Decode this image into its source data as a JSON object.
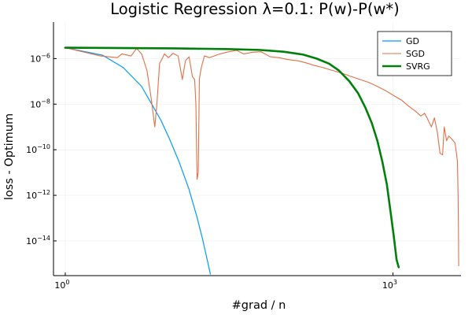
{
  "chart_data": {
    "type": "line",
    "title": "Logistic Regression λ=0.1: P(w)-P(w*)",
    "xlabel": "#grad / n",
    "ylabel": "loss - Optimum",
    "x_scale": "log10",
    "y_scale": "log10",
    "xlim": [
      0.78,
      4200
    ],
    "ylim": [
      3e-16,
      4e-05
    ],
    "grid": true,
    "legend_position": "top-right",
    "x_ticks": [
      {
        "value": 1,
        "base": "10",
        "exp": "0"
      },
      {
        "value": 1000,
        "base": "10",
        "exp": "3"
      }
    ],
    "y_ticks": [
      {
        "value": 1e-06,
        "base": "10",
        "exp": "−6"
      },
      {
        "value": 1e-08,
        "base": "10",
        "exp": "−8"
      },
      {
        "value": 1e-10,
        "base": "10",
        "exp": "−10"
      },
      {
        "value": 1e-12,
        "base": "10",
        "exp": "−12"
      },
      {
        "value": 1e-14,
        "base": "10",
        "exp": "−14"
      }
    ],
    "series": [
      {
        "name": "GD",
        "color": "#009af9",
        "width": 1.2,
        "points": [
          [
            1,
            3e-06
          ],
          [
            2.2,
            1.4e-06
          ],
          [
            3.4,
            4e-07
          ],
          [
            5,
            6e-08
          ],
          [
            6,
            1.3e-08
          ],
          [
            7.5,
            2e-09
          ],
          [
            9,
            3e-10
          ],
          [
            11,
            3e-11
          ],
          [
            13.5,
            2e-12
          ],
          [
            16,
            1.2e-13
          ],
          [
            18,
            1.3e-14
          ],
          [
            20,
            1.4e-15
          ],
          [
            21.3,
            3.5e-16
          ]
        ]
      },
      {
        "name": "SGD",
        "color": "#e26f46",
        "width": 1.1,
        "points": [
          [
            1,
            3e-06
          ],
          [
            2.1,
            1.3e-06
          ],
          [
            3,
            1.1e-06
          ],
          [
            3.3,
            1.6e-06
          ],
          [
            4,
            1.3e-06
          ],
          [
            4.5,
            2.8e-06
          ],
          [
            5,
            1.6e-06
          ],
          [
            5.6,
            3e-07
          ],
          [
            6.1,
            2e-08
          ],
          [
            6.6,
            1e-09
          ],
          [
            6.9,
            1e-08
          ],
          [
            7.3,
            6e-07
          ],
          [
            8.1,
            1.6e-06
          ],
          [
            8.8,
            1.1e-06
          ],
          [
            9.7,
            1.7e-06
          ],
          [
            10.8,
            1.3e-06
          ],
          [
            11.8,
            1.2e-07
          ],
          [
            12.6,
            8e-07
          ],
          [
            13.6,
            1.2e-06
          ],
          [
            14.6,
            1.6e-07
          ],
          [
            15.3,
            1.2e-07
          ],
          [
            15.7,
            1e-08
          ],
          [
            16.1,
            5e-12
          ],
          [
            16.5,
            1e-11
          ],
          [
            16.9,
            1.3e-07
          ],
          [
            17.6,
            4e-07
          ],
          [
            18.8,
            1.3e-06
          ],
          [
            21,
            1.1e-06
          ],
          [
            25,
            1.5e-06
          ],
          [
            30,
            1.9e-06
          ],
          [
            37,
            2.3e-06
          ],
          [
            43,
            1.6e-06
          ],
          [
            52,
            1.9e-06
          ],
          [
            62,
            2e-06
          ],
          [
            75,
            1.2e-06
          ],
          [
            90,
            1.1e-06
          ],
          [
            110,
            9e-07
          ],
          [
            135,
            8e-07
          ],
          [
            160,
            6.5e-07
          ],
          [
            190,
            5e-07
          ],
          [
            230,
            4e-07
          ],
          [
            280,
            3e-07
          ],
          [
            340,
            2.3e-07
          ],
          [
            420,
            1.6e-07
          ],
          [
            500,
            1.2e-07
          ],
          [
            600,
            9e-08
          ],
          [
            720,
            6e-08
          ],
          [
            850,
            4e-08
          ],
          [
            1000,
            2.5e-08
          ],
          [
            1200,
            1.5e-08
          ],
          [
            1400,
            8e-09
          ],
          [
            1600,
            5e-09
          ],
          [
            1800,
            3e-09
          ],
          [
            1950,
            4e-09
          ],
          [
            2100,
            2e-09
          ],
          [
            2250,
            1e-09
          ],
          [
            2400,
            2.5e-09
          ],
          [
            2550,
            6e-10
          ],
          [
            2700,
            7e-11
          ],
          [
            2850,
            6e-11
          ],
          [
            2950,
            1e-09
          ],
          [
            3100,
            2.5e-10
          ],
          [
            3250,
            4e-10
          ],
          [
            3450,
            3e-10
          ],
          [
            3700,
            2e-10
          ],
          [
            3800,
            8e-11
          ],
          [
            3900,
            3e-11
          ],
          [
            3950,
            1e-12
          ],
          [
            3980,
            5e-14
          ],
          [
            4000,
            8e-16
          ]
        ]
      },
      {
        "name": "SVRG",
        "color": "#00800b",
        "width": 2.6,
        "points": [
          [
            1,
            3e-06
          ],
          [
            10,
            2.8e-06
          ],
          [
            30,
            2.6e-06
          ],
          [
            60,
            2.4e-06
          ],
          [
            100,
            2e-06
          ],
          [
            150,
            1.5e-06
          ],
          [
            200,
            1e-06
          ],
          [
            260,
            6e-07
          ],
          [
            320,
            3e-07
          ],
          [
            400,
            1e-07
          ],
          [
            480,
            3e-08
          ],
          [
            560,
            7e-09
          ],
          [
            640,
            1.5e-09
          ],
          [
            720,
            2.5e-10
          ],
          [
            800,
            3e-11
          ],
          [
            880,
            3e-12
          ],
          [
            950,
            2e-13
          ],
          [
            1020,
            1.5e-14
          ],
          [
            1080,
            1.5e-15
          ],
          [
            1130,
            7e-16
          ]
        ]
      }
    ]
  }
}
